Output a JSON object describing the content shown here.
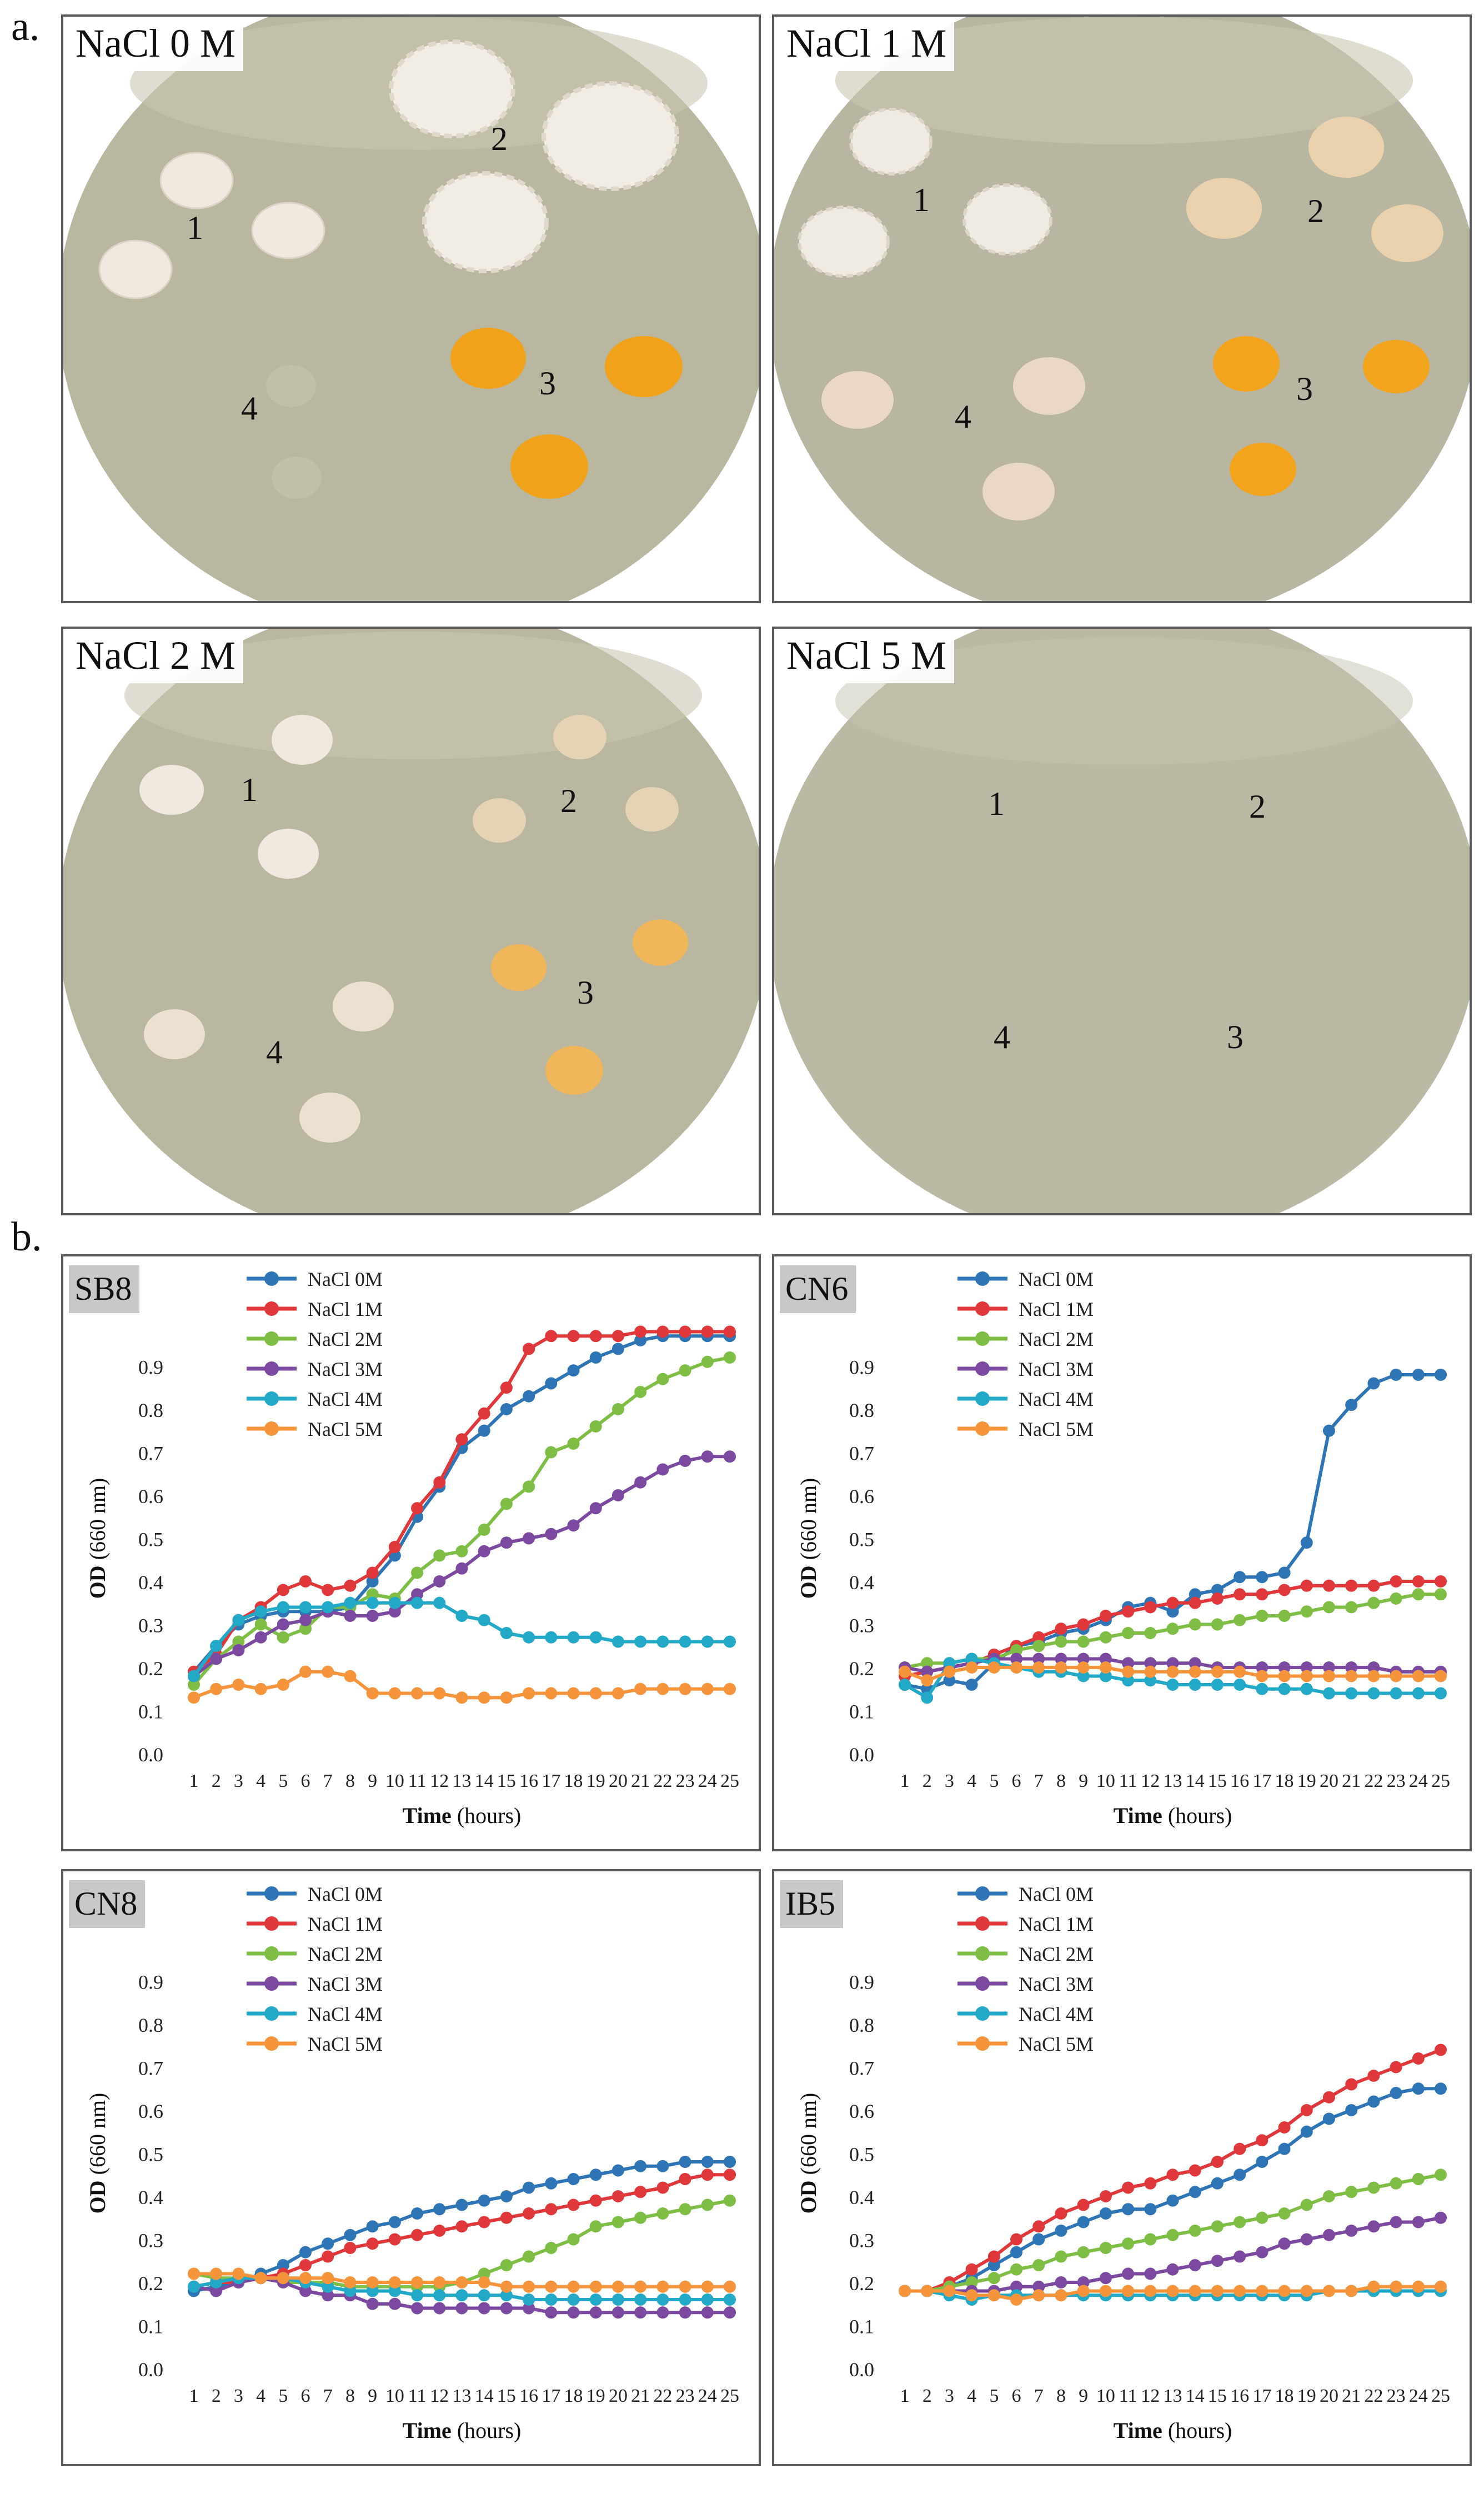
{
  "figure": {
    "part_a_label": "a.",
    "part_b_label": "b."
  },
  "plates": [
    {
      "title": "NaCl 0 M",
      "numbers": [
        "1",
        "2",
        "3",
        "4"
      ]
    },
    {
      "title": "NaCl 1 M",
      "numbers": [
        "1",
        "2",
        "3",
        "4"
      ]
    },
    {
      "title": "NaCl 2 M",
      "numbers": [
        "1",
        "2",
        "3",
        "4"
      ]
    },
    {
      "title": "NaCl 5 M",
      "numbers": [
        "1",
        "2",
        "3",
        "4"
      ]
    }
  ],
  "colors": {
    "agar": "#b9b79f",
    "white_colony": "#efe9df",
    "cream_colony": "#ead2ae",
    "orange_colony": "#f0a21a",
    "series": [
      "#2e75b6",
      "#e0383a",
      "#7ebe45",
      "#7b4aa0",
      "#21a9c7",
      "#f6943b"
    ]
  },
  "chart_data": [
    {
      "tag": "SB8",
      "type": "line",
      "xlabel": "Time (hours)",
      "ylabel": "OD (660 nm)",
      "ylim": [
        0,
        1.0
      ],
      "yticks": [
        "0.0",
        "0.1",
        "0.2",
        "0.3",
        "0.4",
        "0.5",
        "0.6",
        "0.7",
        "0.8",
        "0.9"
      ],
      "x": [
        1,
        2,
        3,
        4,
        5,
        6,
        7,
        8,
        9,
        10,
        11,
        12,
        13,
        14,
        15,
        16,
        17,
        18,
        19,
        20,
        21,
        22,
        23,
        24,
        25
      ],
      "series": [
        {
          "name": "NaCl 0M",
          "values": [
            0.19,
            0.25,
            0.3,
            0.32,
            0.33,
            0.33,
            0.33,
            0.34,
            0.4,
            0.46,
            0.55,
            0.62,
            0.71,
            0.75,
            0.8,
            0.83,
            0.86,
            0.89,
            0.92,
            0.94,
            0.96,
            0.97,
            0.97,
            0.97,
            0.97
          ]
        },
        {
          "name": "NaCl 1M",
          "values": [
            0.19,
            0.23,
            0.31,
            0.34,
            0.38,
            0.4,
            0.38,
            0.39,
            0.42,
            0.48,
            0.57,
            0.63,
            0.73,
            0.79,
            0.85,
            0.94,
            0.97,
            0.97,
            0.97,
            0.97,
            0.98,
            0.98,
            0.98,
            0.98,
            0.98
          ]
        },
        {
          "name": "NaCl 2M",
          "values": [
            0.16,
            0.22,
            0.26,
            0.3,
            0.27,
            0.29,
            0.34,
            0.34,
            0.37,
            0.36,
            0.42,
            0.46,
            0.47,
            0.52,
            0.58,
            0.62,
            0.7,
            0.72,
            0.76,
            0.8,
            0.84,
            0.87,
            0.89,
            0.91,
            0.92
          ]
        },
        {
          "name": "NaCl 3M",
          "values": [
            0.18,
            0.22,
            0.24,
            0.27,
            0.3,
            0.31,
            0.33,
            0.32,
            0.32,
            0.33,
            0.37,
            0.4,
            0.43,
            0.47,
            0.49,
            0.5,
            0.51,
            0.53,
            0.57,
            0.6,
            0.63,
            0.66,
            0.68,
            0.69,
            0.69
          ]
        },
        {
          "name": "NaCl 4M",
          "values": [
            0.18,
            0.25,
            0.31,
            0.33,
            0.34,
            0.34,
            0.34,
            0.35,
            0.35,
            0.35,
            0.35,
            0.35,
            0.32,
            0.31,
            0.28,
            0.27,
            0.27,
            0.27,
            0.27,
            0.26,
            0.26,
            0.26,
            0.26,
            0.26,
            0.26
          ]
        },
        {
          "name": "NaCl 5M",
          "values": [
            0.13,
            0.15,
            0.16,
            0.15,
            0.16,
            0.19,
            0.19,
            0.18,
            0.14,
            0.14,
            0.14,
            0.14,
            0.13,
            0.13,
            0.13,
            0.14,
            0.14,
            0.14,
            0.14,
            0.14,
            0.15,
            0.15,
            0.15,
            0.15,
            0.15
          ]
        }
      ]
    },
    {
      "tag": "CN6",
      "type": "line",
      "xlabel": "Time (hours)",
      "ylabel": "OD (660 nm)",
      "ylim": [
        0,
        1.0
      ],
      "yticks": [
        "0.0",
        "0.1",
        "0.2",
        "0.3",
        "0.4",
        "0.5",
        "0.6",
        "0.7",
        "0.8",
        "0.9"
      ],
      "x": [
        1,
        2,
        3,
        4,
        5,
        6,
        7,
        8,
        9,
        10,
        11,
        12,
        13,
        14,
        15,
        16,
        17,
        18,
        19,
        20,
        21,
        22,
        23,
        24,
        25
      ],
      "series": [
        {
          "name": "NaCl 0M",
          "values": [
            0.16,
            0.15,
            0.17,
            0.16,
            0.21,
            0.25,
            0.26,
            0.28,
            0.29,
            0.31,
            0.34,
            0.35,
            0.33,
            0.37,
            0.38,
            0.41,
            0.41,
            0.42,
            0.49,
            0.75,
            0.81,
            0.86,
            0.88,
            0.88,
            0.88
          ]
        },
        {
          "name": "NaCl 1M",
          "values": [
            0.18,
            0.19,
            0.2,
            0.21,
            0.23,
            0.25,
            0.27,
            0.29,
            0.3,
            0.32,
            0.33,
            0.34,
            0.35,
            0.35,
            0.36,
            0.37,
            0.37,
            0.38,
            0.39,
            0.39,
            0.39,
            0.39,
            0.4,
            0.4,
            0.4
          ]
        },
        {
          "name": "NaCl 2M",
          "values": [
            0.2,
            0.21,
            0.21,
            0.22,
            0.22,
            0.24,
            0.25,
            0.26,
            0.26,
            0.27,
            0.28,
            0.28,
            0.29,
            0.3,
            0.3,
            0.31,
            0.32,
            0.32,
            0.33,
            0.34,
            0.34,
            0.35,
            0.36,
            0.37,
            0.37
          ]
        },
        {
          "name": "NaCl 3M",
          "values": [
            0.2,
            0.19,
            0.2,
            0.21,
            0.22,
            0.22,
            0.22,
            0.22,
            0.22,
            0.22,
            0.21,
            0.21,
            0.21,
            0.21,
            0.2,
            0.2,
            0.2,
            0.2,
            0.2,
            0.2,
            0.2,
            0.2,
            0.19,
            0.19,
            0.19
          ]
        },
        {
          "name": "NaCl 4M",
          "values": [
            0.16,
            0.13,
            0.21,
            0.22,
            0.21,
            0.2,
            0.19,
            0.19,
            0.18,
            0.18,
            0.17,
            0.17,
            0.16,
            0.16,
            0.16,
            0.16,
            0.15,
            0.15,
            0.15,
            0.14,
            0.14,
            0.14,
            0.14,
            0.14,
            0.14
          ]
        },
        {
          "name": "NaCl 5M",
          "values": [
            0.19,
            0.17,
            0.19,
            0.2,
            0.2,
            0.2,
            0.2,
            0.2,
            0.2,
            0.2,
            0.19,
            0.19,
            0.19,
            0.19,
            0.19,
            0.19,
            0.18,
            0.18,
            0.18,
            0.18,
            0.18,
            0.18,
            0.18,
            0.18,
            0.18
          ]
        }
      ]
    },
    {
      "tag": "CN8",
      "type": "line",
      "xlabel": "Time (hours)",
      "ylabel": "OD (660 nm)",
      "ylim": [
        0,
        1.0
      ],
      "yticks": [
        "0.0",
        "0.1",
        "0.2",
        "0.3",
        "0.4",
        "0.5",
        "0.6",
        "0.7",
        "0.8",
        "0.9"
      ],
      "x": [
        1,
        2,
        3,
        4,
        5,
        6,
        7,
        8,
        9,
        10,
        11,
        12,
        13,
        14,
        15,
        16,
        17,
        18,
        19,
        20,
        21,
        22,
        23,
        24,
        25
      ],
      "series": [
        {
          "name": "NaCl 0M",
          "values": [
            0.18,
            0.19,
            0.2,
            0.22,
            0.24,
            0.27,
            0.29,
            0.31,
            0.33,
            0.34,
            0.36,
            0.37,
            0.38,
            0.39,
            0.4,
            0.42,
            0.43,
            0.44,
            0.45,
            0.46,
            0.47,
            0.47,
            0.48,
            0.48,
            0.48
          ]
        },
        {
          "name": "NaCl 1M",
          "values": [
            0.19,
            0.2,
            0.2,
            0.21,
            0.22,
            0.24,
            0.26,
            0.28,
            0.29,
            0.3,
            0.31,
            0.32,
            0.33,
            0.34,
            0.35,
            0.36,
            0.37,
            0.38,
            0.39,
            0.4,
            0.41,
            0.42,
            0.44,
            0.45,
            0.45
          ]
        },
        {
          "name": "NaCl 2M",
          "values": [
            0.22,
            0.21,
            0.21,
            0.21,
            0.2,
            0.2,
            0.2,
            0.19,
            0.19,
            0.19,
            0.19,
            0.19,
            0.2,
            0.22,
            0.24,
            0.26,
            0.28,
            0.3,
            0.33,
            0.34,
            0.35,
            0.36,
            0.37,
            0.38,
            0.39
          ]
        },
        {
          "name": "NaCl 3M",
          "values": [
            0.19,
            0.18,
            0.2,
            0.21,
            0.2,
            0.18,
            0.17,
            0.17,
            0.15,
            0.15,
            0.14,
            0.14,
            0.14,
            0.14,
            0.14,
            0.14,
            0.13,
            0.13,
            0.13,
            0.13,
            0.13,
            0.13,
            0.13,
            0.13,
            0.13
          ]
        },
        {
          "name": "NaCl 4M",
          "values": [
            0.19,
            0.2,
            0.21,
            0.21,
            0.21,
            0.2,
            0.19,
            0.18,
            0.18,
            0.18,
            0.17,
            0.17,
            0.17,
            0.17,
            0.17,
            0.16,
            0.16,
            0.16,
            0.16,
            0.16,
            0.16,
            0.16,
            0.16,
            0.16,
            0.16
          ]
        },
        {
          "name": "NaCl 5M",
          "values": [
            0.22,
            0.22,
            0.22,
            0.21,
            0.21,
            0.21,
            0.21,
            0.2,
            0.2,
            0.2,
            0.2,
            0.2,
            0.2,
            0.2,
            0.19,
            0.19,
            0.19,
            0.19,
            0.19,
            0.19,
            0.19,
            0.19,
            0.19,
            0.19,
            0.19
          ]
        }
      ]
    },
    {
      "tag": "IB5",
      "type": "line",
      "xlabel": "Time (hours)",
      "ylabel": "OD (660 nm)",
      "ylim": [
        0,
        1.0
      ],
      "yticks": [
        "0.0",
        "0.1",
        "0.2",
        "0.3",
        "0.4",
        "0.5",
        "0.6",
        "0.7",
        "0.8",
        "0.9"
      ],
      "x": [
        1,
        2,
        3,
        4,
        5,
        6,
        7,
        8,
        9,
        10,
        11,
        12,
        13,
        14,
        15,
        16,
        17,
        18,
        19,
        20,
        21,
        22,
        23,
        24,
        25
      ],
      "series": [
        {
          "name": "NaCl 0M",
          "values": [
            0.18,
            0.18,
            0.19,
            0.21,
            0.24,
            0.27,
            0.3,
            0.32,
            0.34,
            0.36,
            0.37,
            0.37,
            0.39,
            0.41,
            0.43,
            0.45,
            0.48,
            0.51,
            0.55,
            0.58,
            0.6,
            0.62,
            0.64,
            0.65,
            0.65
          ]
        },
        {
          "name": "NaCl 1M",
          "values": [
            0.18,
            0.18,
            0.2,
            0.23,
            0.26,
            0.3,
            0.33,
            0.36,
            0.38,
            0.4,
            0.42,
            0.43,
            0.45,
            0.46,
            0.48,
            0.51,
            0.53,
            0.56,
            0.6,
            0.63,
            0.66,
            0.68,
            0.7,
            0.72,
            0.74
          ]
        },
        {
          "name": "NaCl 2M",
          "values": [
            0.18,
            0.18,
            0.19,
            0.2,
            0.21,
            0.23,
            0.24,
            0.26,
            0.27,
            0.28,
            0.29,
            0.3,
            0.31,
            0.32,
            0.33,
            0.34,
            0.35,
            0.36,
            0.38,
            0.4,
            0.41,
            0.42,
            0.43,
            0.44,
            0.45
          ]
        },
        {
          "name": "NaCl 3M",
          "values": [
            0.18,
            0.18,
            0.18,
            0.18,
            0.18,
            0.19,
            0.19,
            0.2,
            0.2,
            0.21,
            0.22,
            0.22,
            0.23,
            0.24,
            0.25,
            0.26,
            0.27,
            0.29,
            0.3,
            0.31,
            0.32,
            0.33,
            0.34,
            0.34,
            0.35
          ]
        },
        {
          "name": "NaCl 4M",
          "values": [
            0.18,
            0.18,
            0.17,
            0.16,
            0.17,
            0.17,
            0.17,
            0.17,
            0.17,
            0.17,
            0.17,
            0.17,
            0.17,
            0.17,
            0.17,
            0.17,
            0.17,
            0.17,
            0.17,
            0.18,
            0.18,
            0.18,
            0.18,
            0.18,
            0.18
          ]
        },
        {
          "name": "NaCl 5M",
          "values": [
            0.18,
            0.18,
            0.18,
            0.17,
            0.17,
            0.16,
            0.17,
            0.17,
            0.18,
            0.18,
            0.18,
            0.18,
            0.18,
            0.18,
            0.18,
            0.18,
            0.18,
            0.18,
            0.18,
            0.18,
            0.18,
            0.19,
            0.19,
            0.19,
            0.19
          ]
        }
      ]
    }
  ]
}
